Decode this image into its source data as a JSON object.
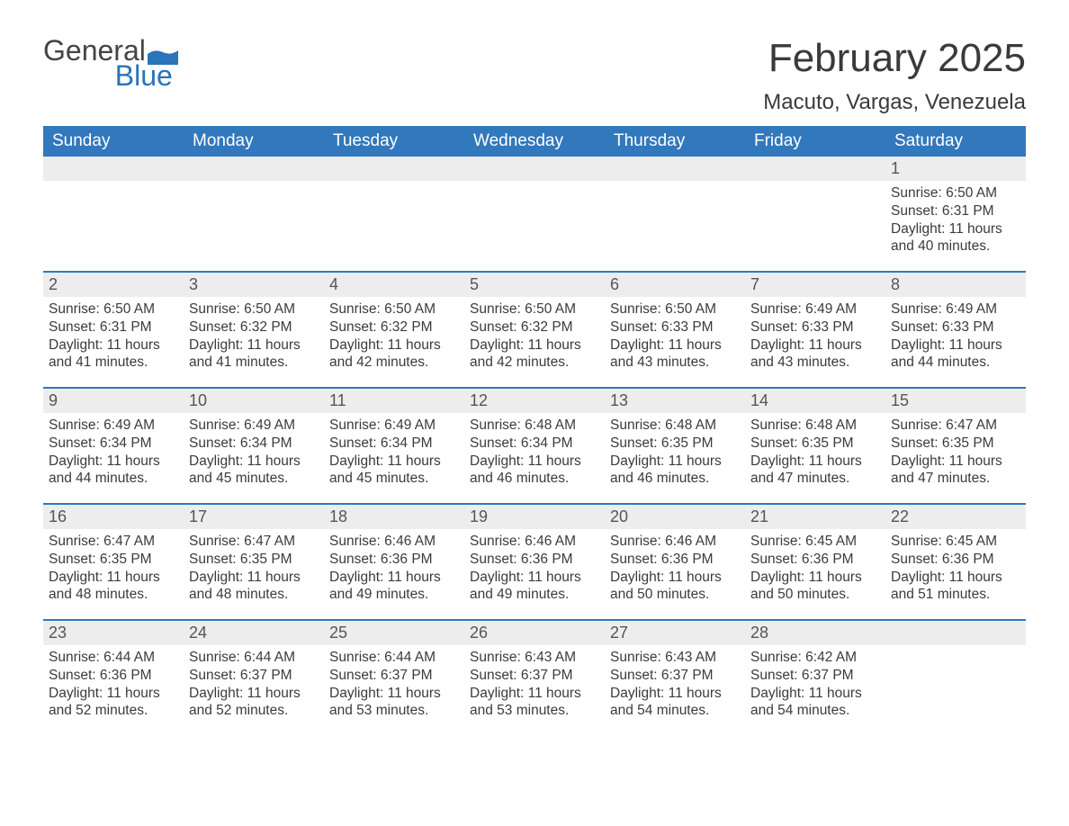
{
  "logo": {
    "word1": "General",
    "word2": "Blue",
    "accent_color": "#2a74b8",
    "text_color": "#444444"
  },
  "title": "February 2025",
  "location": "Macuto, Vargas, Venezuela",
  "colors": {
    "header_bg": "#3278bc",
    "header_text": "#ffffff",
    "daynum_bg": "#ededed",
    "sep": "#3278bc",
    "body_text": "#3b3b3b",
    "background": "#ffffff"
  },
  "fonts": {
    "title_pt": 44,
    "location_pt": 24,
    "dayheader_pt": 19,
    "daynum_pt": 18,
    "body_pt": 15.5
  },
  "day_headers": [
    "Sunday",
    "Monday",
    "Tuesday",
    "Wednesday",
    "Thursday",
    "Friday",
    "Saturday"
  ],
  "weeks": [
    [
      null,
      null,
      null,
      null,
      null,
      null,
      {
        "n": "1",
        "sunrise": "6:50 AM",
        "sunset": "6:31 PM",
        "daylight": "11 hours and 40 minutes."
      }
    ],
    [
      {
        "n": "2",
        "sunrise": "6:50 AM",
        "sunset": "6:31 PM",
        "daylight": "11 hours and 41 minutes."
      },
      {
        "n": "3",
        "sunrise": "6:50 AM",
        "sunset": "6:32 PM",
        "daylight": "11 hours and 41 minutes."
      },
      {
        "n": "4",
        "sunrise": "6:50 AM",
        "sunset": "6:32 PM",
        "daylight": "11 hours and 42 minutes."
      },
      {
        "n": "5",
        "sunrise": "6:50 AM",
        "sunset": "6:32 PM",
        "daylight": "11 hours and 42 minutes."
      },
      {
        "n": "6",
        "sunrise": "6:50 AM",
        "sunset": "6:33 PM",
        "daylight": "11 hours and 43 minutes."
      },
      {
        "n": "7",
        "sunrise": "6:49 AM",
        "sunset": "6:33 PM",
        "daylight": "11 hours and 43 minutes."
      },
      {
        "n": "8",
        "sunrise": "6:49 AM",
        "sunset": "6:33 PM",
        "daylight": "11 hours and 44 minutes."
      }
    ],
    [
      {
        "n": "9",
        "sunrise": "6:49 AM",
        "sunset": "6:34 PM",
        "daylight": "11 hours and 44 minutes."
      },
      {
        "n": "10",
        "sunrise": "6:49 AM",
        "sunset": "6:34 PM",
        "daylight": "11 hours and 45 minutes."
      },
      {
        "n": "11",
        "sunrise": "6:49 AM",
        "sunset": "6:34 PM",
        "daylight": "11 hours and 45 minutes."
      },
      {
        "n": "12",
        "sunrise": "6:48 AM",
        "sunset": "6:34 PM",
        "daylight": "11 hours and 46 minutes."
      },
      {
        "n": "13",
        "sunrise": "6:48 AM",
        "sunset": "6:35 PM",
        "daylight": "11 hours and 46 minutes."
      },
      {
        "n": "14",
        "sunrise": "6:48 AM",
        "sunset": "6:35 PM",
        "daylight": "11 hours and 47 minutes."
      },
      {
        "n": "15",
        "sunrise": "6:47 AM",
        "sunset": "6:35 PM",
        "daylight": "11 hours and 47 minutes."
      }
    ],
    [
      {
        "n": "16",
        "sunrise": "6:47 AM",
        "sunset": "6:35 PM",
        "daylight": "11 hours and 48 minutes."
      },
      {
        "n": "17",
        "sunrise": "6:47 AM",
        "sunset": "6:35 PM",
        "daylight": "11 hours and 48 minutes."
      },
      {
        "n": "18",
        "sunrise": "6:46 AM",
        "sunset": "6:36 PM",
        "daylight": "11 hours and 49 minutes."
      },
      {
        "n": "19",
        "sunrise": "6:46 AM",
        "sunset": "6:36 PM",
        "daylight": "11 hours and 49 minutes."
      },
      {
        "n": "20",
        "sunrise": "6:46 AM",
        "sunset": "6:36 PM",
        "daylight": "11 hours and 50 minutes."
      },
      {
        "n": "21",
        "sunrise": "6:45 AM",
        "sunset": "6:36 PM",
        "daylight": "11 hours and 50 minutes."
      },
      {
        "n": "22",
        "sunrise": "6:45 AM",
        "sunset": "6:36 PM",
        "daylight": "11 hours and 51 minutes."
      }
    ],
    [
      {
        "n": "23",
        "sunrise": "6:44 AM",
        "sunset": "6:36 PM",
        "daylight": "11 hours and 52 minutes."
      },
      {
        "n": "24",
        "sunrise": "6:44 AM",
        "sunset": "6:37 PM",
        "daylight": "11 hours and 52 minutes."
      },
      {
        "n": "25",
        "sunrise": "6:44 AM",
        "sunset": "6:37 PM",
        "daylight": "11 hours and 53 minutes."
      },
      {
        "n": "26",
        "sunrise": "6:43 AM",
        "sunset": "6:37 PM",
        "daylight": "11 hours and 53 minutes."
      },
      {
        "n": "27",
        "sunrise": "6:43 AM",
        "sunset": "6:37 PM",
        "daylight": "11 hours and 54 minutes."
      },
      {
        "n": "28",
        "sunrise": "6:42 AM",
        "sunset": "6:37 PM",
        "daylight": "11 hours and 54 minutes."
      },
      null
    ]
  ],
  "labels": {
    "sunrise": "Sunrise:",
    "sunset": "Sunset:",
    "daylight": "Daylight:"
  }
}
